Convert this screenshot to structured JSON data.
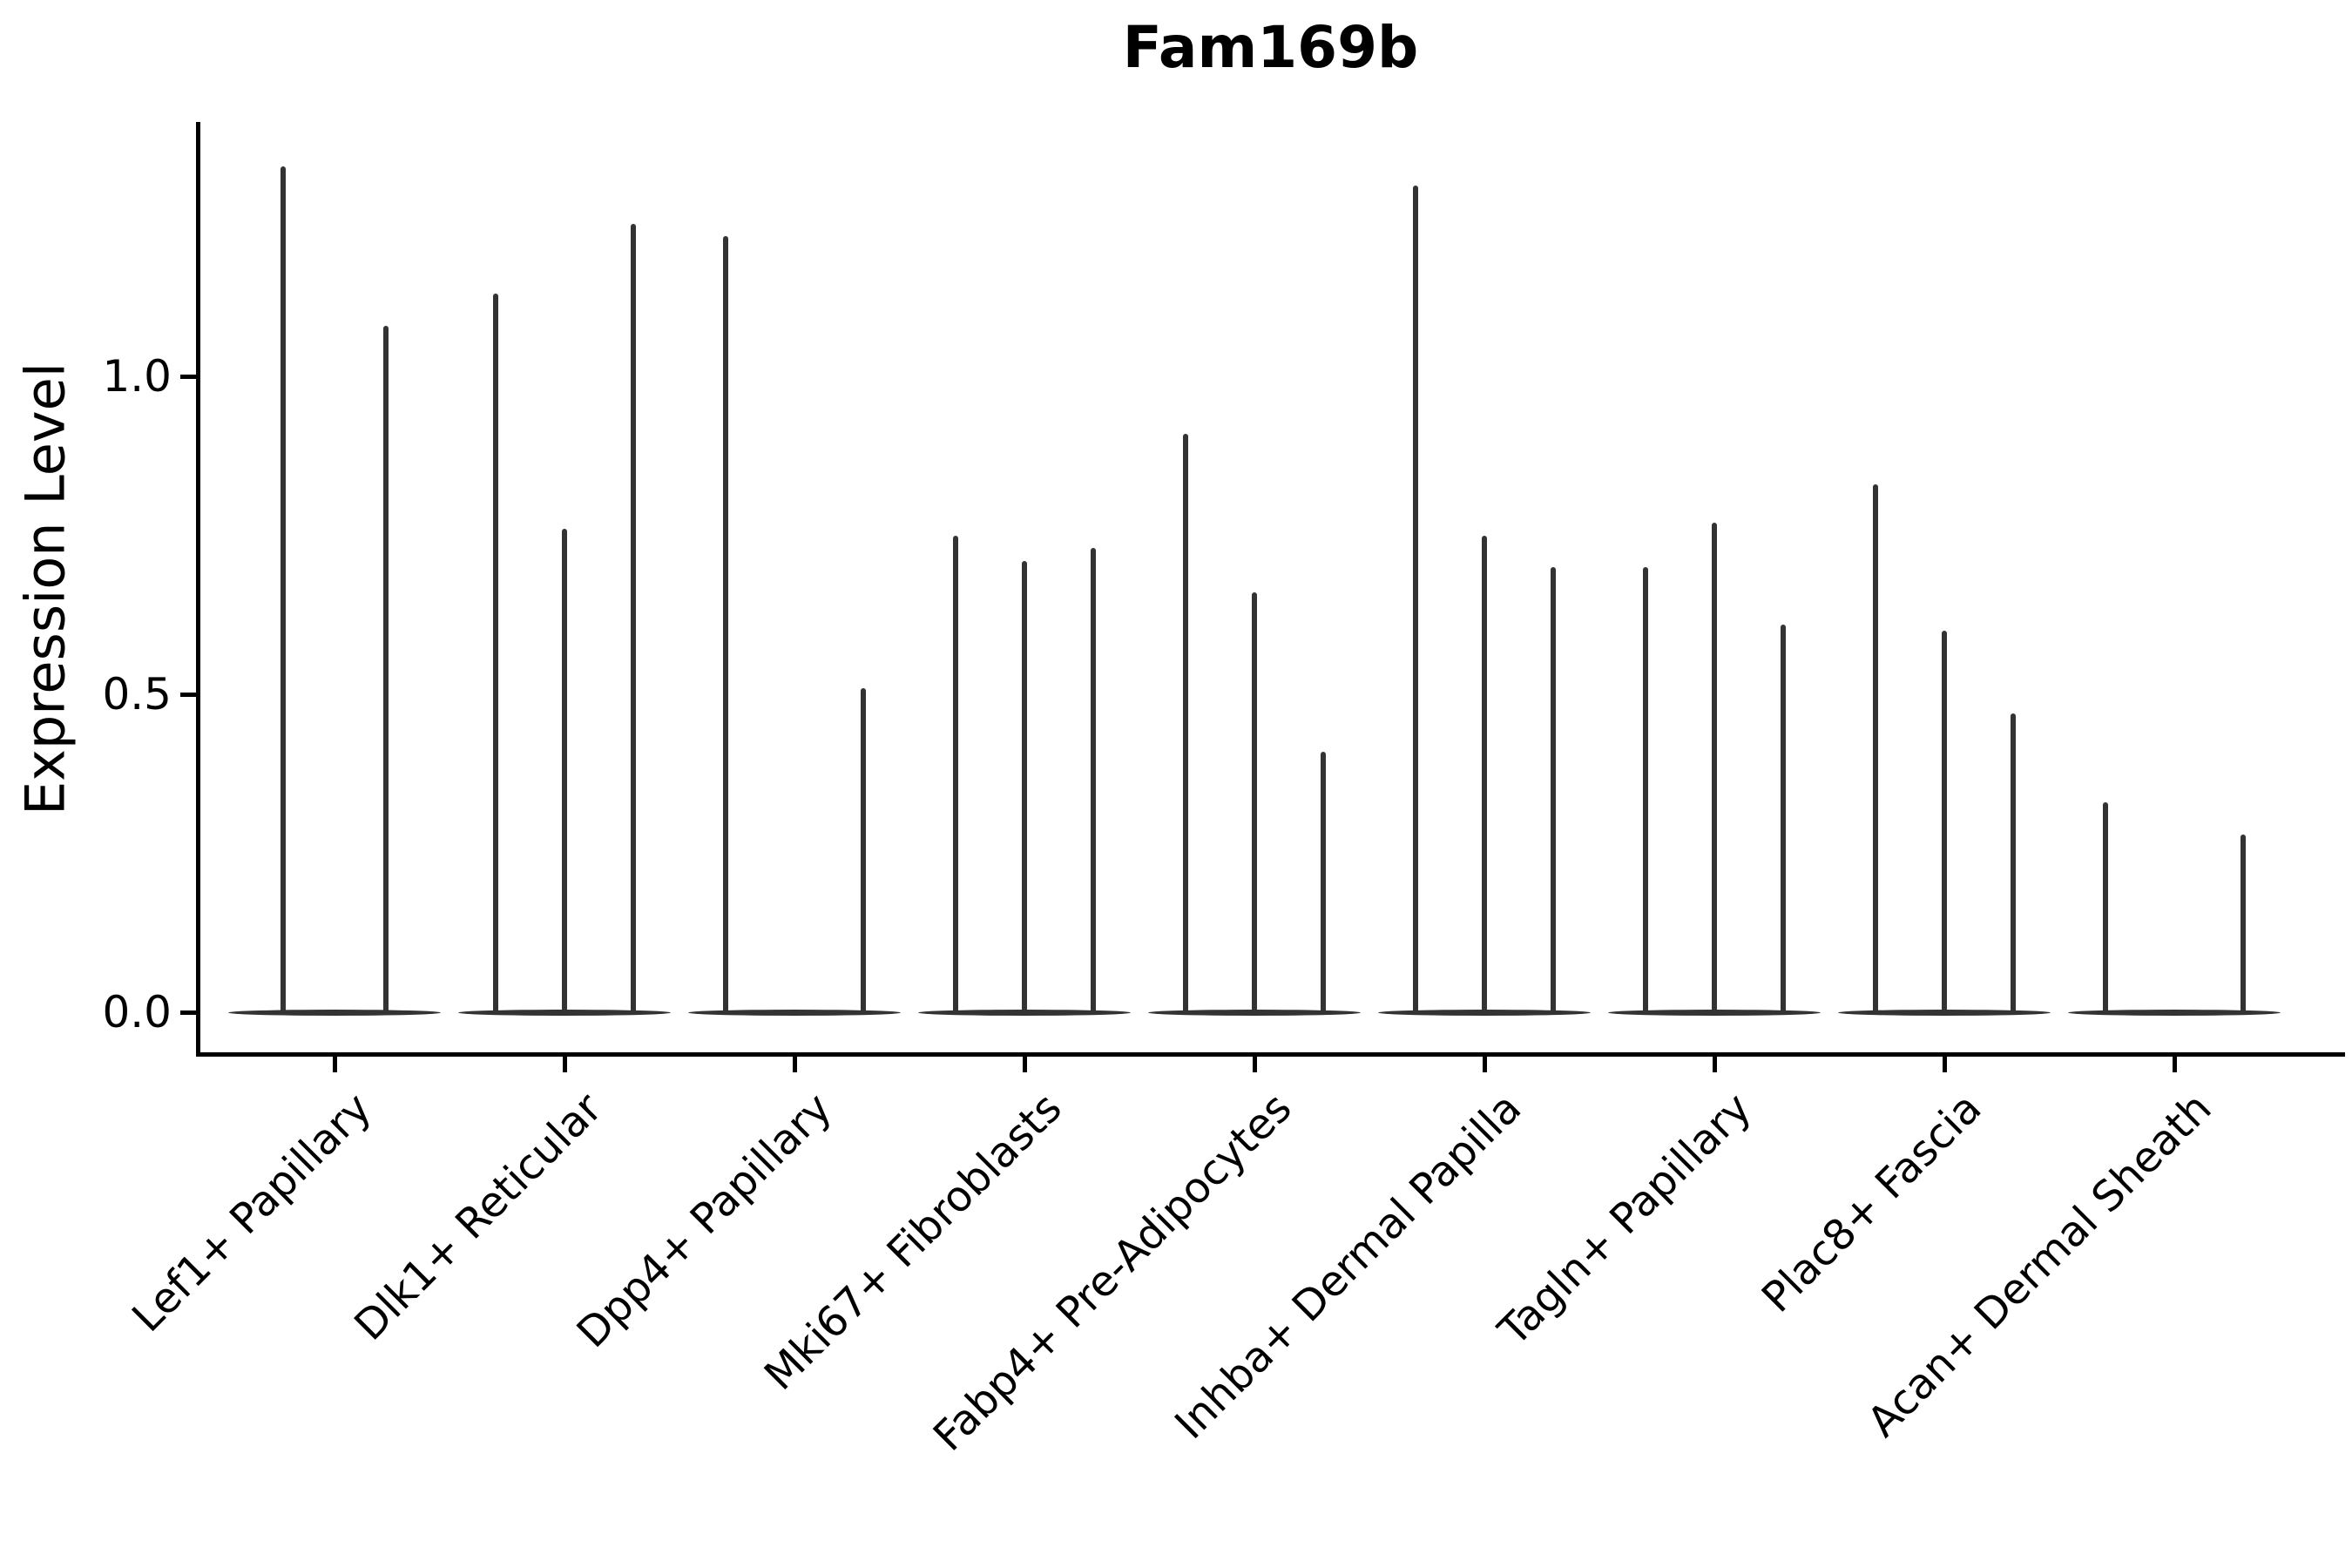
{
  "title": "Fam169b",
  "ylabel": "Expression Level",
  "colors": {
    "violin": "#333333",
    "axis": "#000000",
    "text": "#000000",
    "background": "#ffffff"
  },
  "chart_data": {
    "type": "violin",
    "title": "Fam169b",
    "xlabel": "",
    "ylabel": "Expression Level",
    "ylim": [
      -0.07,
      1.4
    ],
    "yticks": [
      {
        "value": 0.0,
        "label": "0.0"
      },
      {
        "value": 0.5,
        "label": "0.5"
      },
      {
        "value": 1.0,
        "label": "1.0"
      }
    ],
    "grid": false,
    "legend": "none",
    "description": "Narrow violin plot of Fam169b expression per fibroblast cluster; each cluster shows 2-3 thin violins (sub-groups). Most cells are zero (flat lens at baseline); each violin's spike rises to its maximum expression value (peak).",
    "categories": [
      {
        "label": "Lef1+ Papillary",
        "violins": [
          {
            "offset_frac": -0.225,
            "peak": 1.33
          },
          {
            "offset_frac": 0.225,
            "peak": 1.08
          }
        ]
      },
      {
        "label": "Dlk1+ Reticular",
        "violins": [
          {
            "offset_frac": -0.3,
            "peak": 1.13
          },
          {
            "offset_frac": 0.0,
            "peak": 0.76
          },
          {
            "offset_frac": 0.3,
            "peak": 1.24
          }
        ]
      },
      {
        "label": "Dpp4+ Papillary",
        "violins": [
          {
            "offset_frac": -0.3,
            "peak": 1.22
          },
          {
            "offset_frac": 0.0,
            "peak": 0.0
          },
          {
            "offset_frac": 0.3,
            "peak": 0.51
          }
        ]
      },
      {
        "label": "Mki67+ Fibroblasts",
        "violins": [
          {
            "offset_frac": -0.3,
            "peak": 0.75
          },
          {
            "offset_frac": 0.0,
            "peak": 0.71
          },
          {
            "offset_frac": 0.3,
            "peak": 0.73
          }
        ]
      },
      {
        "label": "Fabp4+ Pre-Adipocytes",
        "violins": [
          {
            "offset_frac": -0.3,
            "peak": 0.91
          },
          {
            "offset_frac": 0.0,
            "peak": 0.66
          },
          {
            "offset_frac": 0.3,
            "peak": 0.41
          }
        ]
      },
      {
        "label": "Inhba+ Dermal Papilla",
        "violins": [
          {
            "offset_frac": -0.3,
            "peak": 1.3
          },
          {
            "offset_frac": 0.0,
            "peak": 0.75
          },
          {
            "offset_frac": 0.3,
            "peak": 0.7
          }
        ]
      },
      {
        "label": "Tagln+ Papillary",
        "violins": [
          {
            "offset_frac": -0.3,
            "peak": 0.7
          },
          {
            "offset_frac": 0.0,
            "peak": 0.77
          },
          {
            "offset_frac": 0.3,
            "peak": 0.61
          }
        ]
      },
      {
        "label": "Plac8+ Fascia",
        "violins": [
          {
            "offset_frac": -0.3,
            "peak": 0.83
          },
          {
            "offset_frac": 0.0,
            "peak": 0.6
          },
          {
            "offset_frac": 0.3,
            "peak": 0.47
          }
        ]
      },
      {
        "label": "Acan+ Dermal Sheath",
        "violins": [
          {
            "offset_frac": -0.3,
            "peak": 0.33
          },
          {
            "offset_frac": 0.0,
            "peak": 0.0
          },
          {
            "offset_frac": 0.3,
            "peak": 0.28
          }
        ]
      }
    ]
  }
}
